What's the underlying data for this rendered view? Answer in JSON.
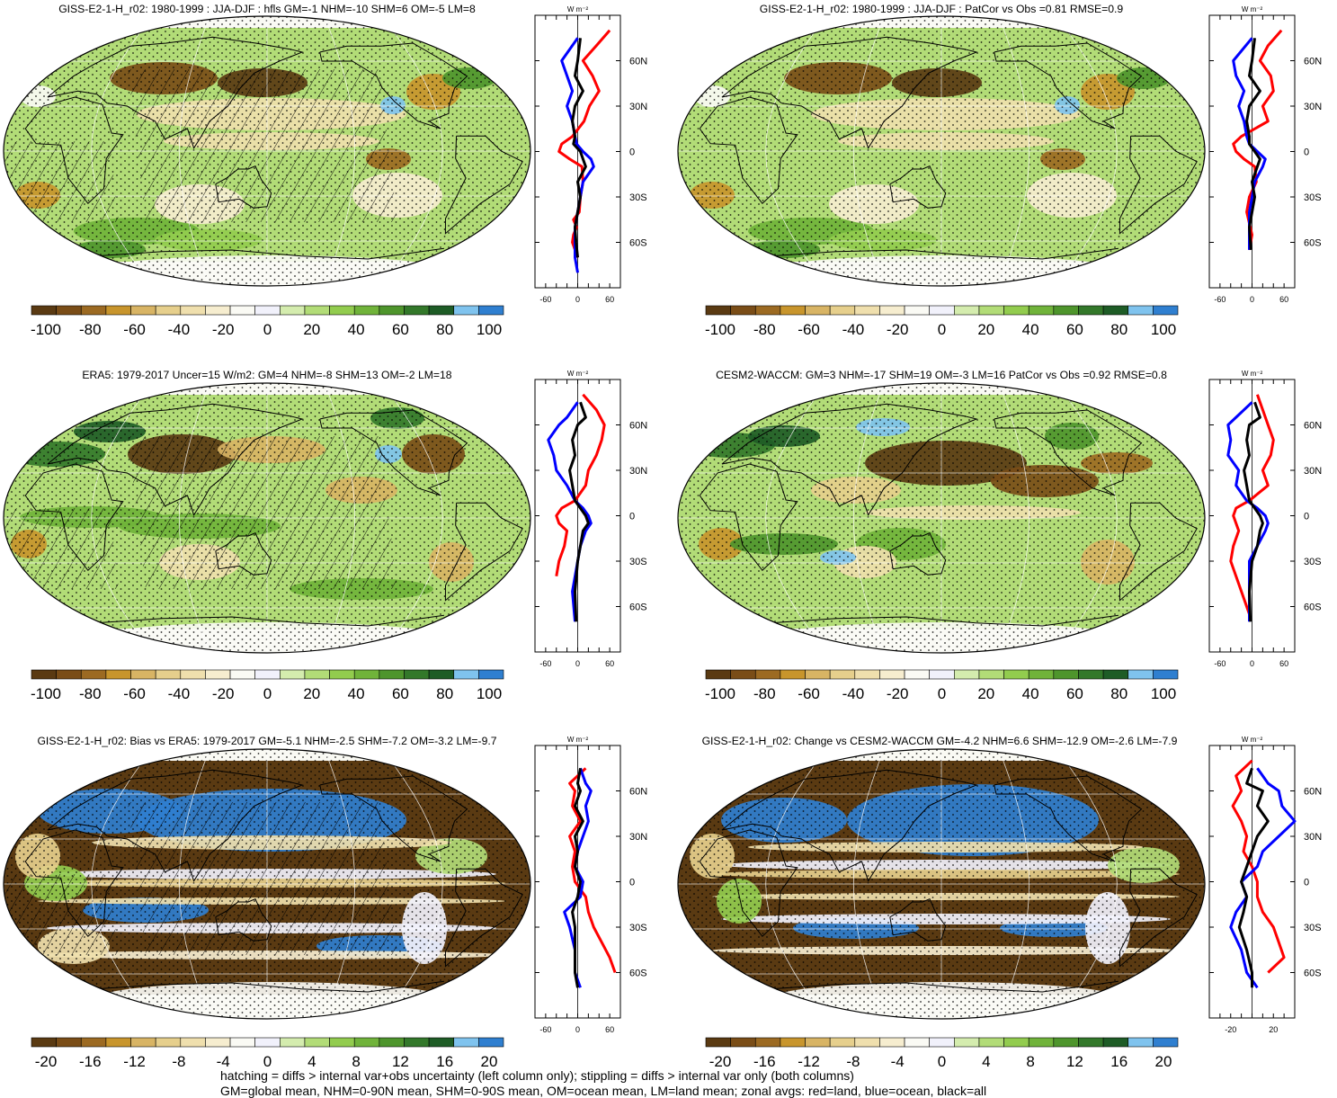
{
  "panels": [
    {
      "id": "p1",
      "title": "GISS-E2-1-H_r02: 1980-1999 : JJA-DJF : hfls GM=-1 NHM=-10 SHM=6 OM=-5 LM=8",
      "style": "giss",
      "hatch": true,
      "scale": "main"
    },
    {
      "id": "p2",
      "title": "GISS-E2-1-H_r02: 1980-1999 : JJA-DJF : PatCor vs Obs =0.81 RMSE=0.9",
      "style": "giss",
      "hatch": false,
      "scale": "main"
    },
    {
      "id": "p3",
      "title": "ERA5: 1979-2017 Uncer=15 W/m2: GM=4 NHM=-8 SHM=13 OM=-2 LM=18",
      "style": "era",
      "hatch": true,
      "scale": "main"
    },
    {
      "id": "p4",
      "title": "CESM2-WACCM: GM=3 NHM=-17 SHM=19 OM=-3 LM=16 PatCor vs Obs =0.92 RMSE=0.8",
      "style": "cesm",
      "hatch": false,
      "scale": "main"
    },
    {
      "id": "p5",
      "title": "GISS-E2-1-H_r02: Bias vs ERA5: 1979-2017 GM=-5.1 NHM=-2.5 SHM=-7.2 OM=-3.2 LM=-9.7",
      "style": "bias",
      "hatch": true,
      "scale": "diff"
    },
    {
      "id": "p6",
      "title": "GISS-E2-1-H_r02: Change vs CESM2-WACCM GM=-4.2 NHM=6.6 SHM=-12.9 OM=-2.6 LM=-7.9",
      "style": "change",
      "hatch": false,
      "scale": "diff"
    }
  ],
  "units_label": "W m⁻²",
  "lat_labels": [
    "60N",
    "30N",
    "0",
    "30S",
    "60S"
  ],
  "colorbars": {
    "main": {
      "labels": [
        "-100",
        "-80",
        "-60",
        "-40",
        "-20",
        "0",
        "20",
        "40",
        "60",
        "80",
        "100"
      ]
    },
    "diff": {
      "labels": [
        "-20",
        "-16",
        "-12",
        "-8",
        "-4",
        "0",
        "4",
        "8",
        "12",
        "16",
        "20"
      ]
    }
  },
  "palette": [
    "#5a3a12",
    "#7a4d17",
    "#9c6a22",
    "#c8952c",
    "#d8b464",
    "#e6cf8c",
    "#efdfad",
    "#f6edcf",
    "#fafaf4",
    "#f1f1fb",
    "#d4ecae",
    "#b2dc77",
    "#92cc4e",
    "#70b33a",
    "#4e952c",
    "#33782a",
    "#1e5c26",
    "#7fc3ee",
    "#2f7fd0"
  ],
  "chart_data": [
    {
      "type": "line",
      "title": "zonal mean p1",
      "xlim": [
        -80,
        80
      ],
      "x_ticks": [
        "-60",
        "0",
        "60"
      ],
      "ylim": [
        -90,
        90
      ],
      "series": [
        {
          "name": "land",
          "color": "#ff0000",
          "x": [
            60,
            35,
            10,
            28,
            40,
            22,
            12,
            -10,
            -30,
            -35,
            -15,
            8,
            10,
            5,
            3,
            -8,
            -2,
            -8,
            -10,
            0
          ],
          "y": [
            80,
            70,
            60,
            50,
            40,
            30,
            20,
            10,
            5,
            0,
            -5,
            -10,
            -20,
            -30,
            -40,
            -45,
            -50,
            -55,
            -60,
            -70
          ]
        },
        {
          "name": "ocean",
          "color": "#0000ff",
          "x": [
            0,
            -30,
            -20,
            -10,
            -20,
            -10,
            -5,
            -2,
            10,
            25,
            30,
            10,
            5,
            0,
            -5,
            -5,
            -5,
            0
          ],
          "y": [
            75,
            60,
            50,
            40,
            30,
            20,
            10,
            5,
            0,
            -5,
            -10,
            -20,
            -30,
            -40,
            -50,
            -60,
            -70,
            -80
          ]
        },
        {
          "name": "all",
          "color": "#000000",
          "x": [
            5,
            0,
            -5,
            10,
            -5,
            -10,
            -5,
            -8,
            5,
            10,
            15,
            0,
            5,
            0,
            -5,
            -3,
            0
          ],
          "y": [
            75,
            60,
            50,
            40,
            30,
            20,
            10,
            5,
            0,
            -5,
            -10,
            -20,
            -30,
            -40,
            -50,
            -60,
            -70
          ]
        }
      ]
    },
    {
      "type": "line",
      "title": "zonal mean p2",
      "xlim": [
        -80,
        80
      ],
      "x_ticks": [
        "-60",
        "0",
        "60"
      ],
      "ylim": [
        -90,
        90
      ],
      "series": [
        {
          "name": "land",
          "color": "#ff0000",
          "x": [
            55,
            30,
            15,
            35,
            40,
            20,
            30,
            -20,
            -35,
            -30,
            -15,
            5,
            8,
            -5,
            -10,
            0,
            -5
          ],
          "y": [
            80,
            70,
            60,
            50,
            40,
            30,
            20,
            10,
            5,
            0,
            -5,
            -10,
            -20,
            -30,
            -40,
            -55,
            -65
          ]
        },
        {
          "name": "ocean",
          "color": "#0000ff",
          "x": [
            0,
            -35,
            -30,
            -15,
            -25,
            -15,
            -10,
            -5,
            10,
            25,
            20,
            5,
            0,
            -5,
            -5,
            -5
          ],
          "y": [
            75,
            60,
            50,
            40,
            30,
            20,
            10,
            5,
            0,
            -5,
            -10,
            -20,
            -30,
            -40,
            -50,
            -65
          ]
        },
        {
          "name": "all",
          "color": "#000000",
          "x": [
            5,
            0,
            -5,
            15,
            -5,
            -10,
            -5,
            -5,
            5,
            15,
            10,
            0,
            5,
            0,
            -5,
            -2
          ],
          "y": [
            75,
            60,
            50,
            40,
            30,
            20,
            10,
            5,
            0,
            -5,
            -10,
            -20,
            -30,
            -40,
            -50,
            -65
          ]
        }
      ]
    },
    {
      "type": "line",
      "title": "zonal mean p3",
      "xlim": [
        -80,
        80
      ],
      "x_ticks": [
        "-60",
        "0",
        "60"
      ],
      "ylim": [
        -90,
        90
      ],
      "series": [
        {
          "name": "land",
          "color": "#ff0000",
          "x": [
            10,
            35,
            50,
            45,
            35,
            20,
            15,
            -5,
            -30,
            -40,
            -35,
            -20,
            -25,
            -35,
            -40
          ],
          "y": [
            80,
            70,
            60,
            50,
            40,
            30,
            20,
            10,
            5,
            0,
            -5,
            -10,
            -20,
            -30,
            -40
          ]
        },
        {
          "name": "ocean",
          "color": "#0000ff",
          "x": [
            0,
            -20,
            -35,
            -55,
            -45,
            -40,
            -20,
            -5,
            10,
            20,
            25,
            15,
            5,
            0,
            -10,
            -5
          ],
          "y": [
            75,
            65,
            60,
            50,
            40,
            30,
            20,
            10,
            5,
            0,
            -5,
            -10,
            -20,
            -30,
            -50,
            -70
          ]
        },
        {
          "name": "all",
          "color": "#000000",
          "x": [
            5,
            15,
            0,
            -10,
            -5,
            -15,
            -10,
            -5,
            5,
            15,
            20,
            10,
            5,
            0,
            -5,
            -3
          ],
          "y": [
            75,
            65,
            60,
            50,
            40,
            30,
            20,
            10,
            5,
            0,
            -5,
            -10,
            -20,
            -30,
            -50,
            -70
          ]
        }
      ]
    },
    {
      "type": "line",
      "title": "zonal mean p4",
      "xlim": [
        -80,
        80
      ],
      "x_ticks": [
        "-60",
        "0",
        "60"
      ],
      "ylim": [
        -90,
        90
      ],
      "series": [
        {
          "name": "land",
          "color": "#ff0000",
          "x": [
            10,
            20,
            30,
            40,
            35,
            20,
            30,
            -5,
            -30,
            -35,
            -30,
            -25,
            -35,
            -40,
            -25,
            -5
          ],
          "y": [
            80,
            70,
            60,
            50,
            40,
            30,
            20,
            10,
            5,
            0,
            -5,
            -10,
            -20,
            -30,
            -45,
            -65
          ]
        },
        {
          "name": "ocean",
          "color": "#0000ff",
          "x": [
            0,
            -30,
            -45,
            -40,
            -45,
            -25,
            -30,
            -10,
            10,
            25,
            30,
            25,
            10,
            -5,
            -5,
            -5
          ],
          "y": [
            75,
            65,
            60,
            50,
            40,
            30,
            20,
            10,
            5,
            0,
            -5,
            -10,
            -20,
            -30,
            -50,
            -70
          ]
        },
        {
          "name": "all",
          "color": "#000000",
          "x": [
            5,
            15,
            -5,
            -10,
            -5,
            -15,
            -10,
            -5,
            5,
            15,
            20,
            15,
            10,
            0,
            -5,
            -3
          ],
          "y": [
            75,
            65,
            60,
            50,
            40,
            30,
            20,
            10,
            5,
            0,
            -5,
            -10,
            -20,
            -30,
            -50,
            -70
          ]
        }
      ]
    },
    {
      "type": "line",
      "title": "zonal mean p5",
      "xlim": [
        -80,
        80
      ],
      "x_ticks": [
        "-60",
        "0",
        "60"
      ],
      "ylim": [
        -90,
        90
      ],
      "series": [
        {
          "name": "land",
          "color": "#ff0000",
          "x": [
            15,
            -15,
            -5,
            -10,
            5,
            -15,
            -5,
            -10,
            -5,
            15,
            20,
            30,
            45,
            60,
            70
          ],
          "y": [
            75,
            65,
            60,
            50,
            40,
            30,
            20,
            10,
            0,
            -10,
            -20,
            -30,
            -40,
            -50,
            -60
          ]
        },
        {
          "name": "ocean",
          "color": "#0000ff",
          "x": [
            5,
            15,
            25,
            15,
            20,
            10,
            0,
            -5,
            10,
            5,
            -25,
            -15,
            -5,
            -5,
            5
          ],
          "y": [
            75,
            65,
            60,
            50,
            40,
            30,
            20,
            10,
            0,
            -10,
            -20,
            -30,
            -45,
            -60,
            -70
          ]
        },
        {
          "name": "all",
          "color": "#000000",
          "x": [
            5,
            0,
            5,
            -5,
            10,
            -5,
            0,
            -5,
            5,
            0,
            -10,
            -5,
            -5,
            -5,
            0
          ],
          "y": [
            75,
            65,
            60,
            50,
            40,
            30,
            20,
            10,
            0,
            -10,
            -20,
            -30,
            -45,
            -60,
            -70
          ]
        }
      ]
    },
    {
      "type": "line",
      "title": "zonal mean p6",
      "xlim": [
        -40,
        40
      ],
      "x_ticks": [
        "-20",
        "20"
      ],
      "ylim": [
        -90,
        90
      ],
      "series": [
        {
          "name": "land",
          "color": "#ff0000",
          "x": [
            0,
            -15,
            -10,
            -18,
            -10,
            -5,
            -8,
            0,
            5,
            5,
            10,
            20,
            25,
            30,
            15
          ],
          "y": [
            80,
            70,
            60,
            50,
            40,
            30,
            20,
            10,
            0,
            -10,
            -20,
            -30,
            -40,
            -50,
            -60
          ]
        },
        {
          "name": "ocean",
          "color": "#0000ff",
          "x": [
            5,
            15,
            25,
            28,
            40,
            25,
            10,
            5,
            -10,
            -5,
            -15,
            -20,
            -10,
            -5,
            5
          ],
          "y": [
            75,
            65,
            60,
            50,
            40,
            30,
            20,
            10,
            0,
            -10,
            -20,
            -30,
            -45,
            -60,
            -70
          ]
        },
        {
          "name": "all",
          "color": "#000000",
          "x": [
            0,
            -5,
            10,
            5,
            15,
            5,
            0,
            -5,
            -10,
            -5,
            -8,
            -12,
            -5,
            0,
            0
          ],
          "y": [
            75,
            65,
            60,
            50,
            40,
            30,
            20,
            10,
            0,
            -10,
            -20,
            -30,
            -45,
            -60,
            -70
          ]
        }
      ]
    }
  ],
  "footer": [
    "hatching = diffs > internal var+obs uncertainty (left column only); stippling = diffs > internal var only (both columns)",
    "GM=global mean, NHM=0-90N mean, SHM=0-90S mean, OM=ocean mean, LM=land mean; zonal avgs: red=land, blue=ocean, black=all"
  ]
}
